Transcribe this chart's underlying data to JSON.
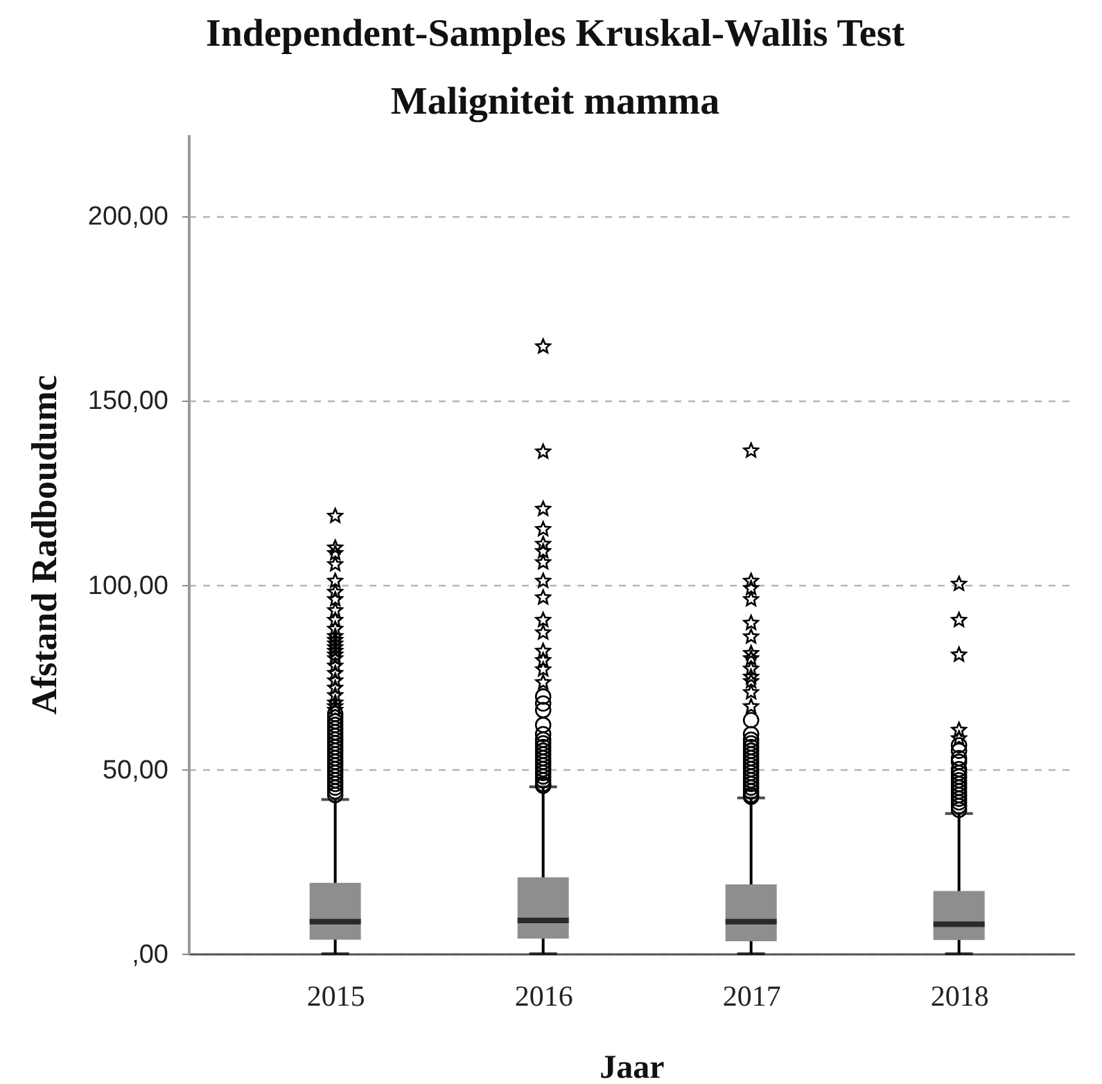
{
  "chart_data": {
    "type": "box",
    "title": "Independent-Samples Kruskal-Wallis Test",
    "subtitle": "Maligniteit mamma",
    "xlabel": "Jaar",
    "ylabel": "Afstand Radboudumc",
    "categories": [
      "2015",
      "2016",
      "2017",
      "2018"
    ],
    "color": "#8e8e8e",
    "boxes": [
      {
        "low": 0,
        "q1": 3.8,
        "median": 8.7,
        "q3": 19.2,
        "high": 41.8,
        "outliers": [
          43,
          44,
          45,
          46,
          47,
          48,
          49,
          50,
          51,
          52,
          53,
          54,
          55,
          56,
          57,
          58,
          59,
          60,
          61,
          62,
          63,
          64,
          65,
          66,
          67,
          68,
          70,
          72,
          74,
          76,
          78,
          80,
          81,
          82,
          83,
          84,
          85,
          86,
          88,
          90.4,
          93,
          96,
          98,
          101,
          105.5,
          108.5,
          110,
          118.6
        ]
      },
      {
        "low": 0,
        "q1": 4.1,
        "median": 9,
        "q3": 20.7,
        "high": 45.2,
        "outliers": [
          45.5,
          46,
          47,
          48,
          49,
          50,
          51,
          52,
          53,
          54,
          55,
          56,
          57,
          58,
          59.5,
          62,
          66,
          67.8,
          69.7,
          73.5,
          77,
          79.5,
          82,
          87,
          90.4,
          96.5,
          101,
          106,
          109,
          111,
          115,
          120.5,
          136,
          164.5
        ]
      },
      {
        "low": 0,
        "q1": 3.4,
        "median": 8.7,
        "q3": 18.8,
        "high": 42.2,
        "outliers": [
          42.5,
          43,
          44,
          45,
          46,
          47,
          48,
          49,
          50,
          51,
          52,
          53,
          54,
          55,
          56,
          57,
          58,
          59.5,
          63.3,
          67,
          70.8,
          73.8,
          75,
          77.2,
          80,
          81.4,
          85.9,
          89.6,
          96,
          99,
          101,
          136.3
        ]
      },
      {
        "low": 0,
        "q1": 3.7,
        "median": 8,
        "q3": 17,
        "high": 38,
        "outliers": [
          39,
          40,
          41,
          42,
          43,
          44,
          45,
          46,
          47,
          48,
          49,
          50,
          52,
          53,
          55,
          56.5,
          58.3,
          60.6,
          81,
          90.4,
          100.2
        ]
      }
    ],
    "ylim": [
      0,
      222
    ],
    "yticks": [
      {
        "value": 0,
        "label": ",00"
      },
      {
        "value": 50,
        "label": "50,00"
      },
      {
        "value": 100,
        "label": "100,00"
      },
      {
        "value": 150,
        "label": "150,00"
      },
      {
        "value": 200,
        "label": "200,00"
      }
    ],
    "grid": "y"
  }
}
